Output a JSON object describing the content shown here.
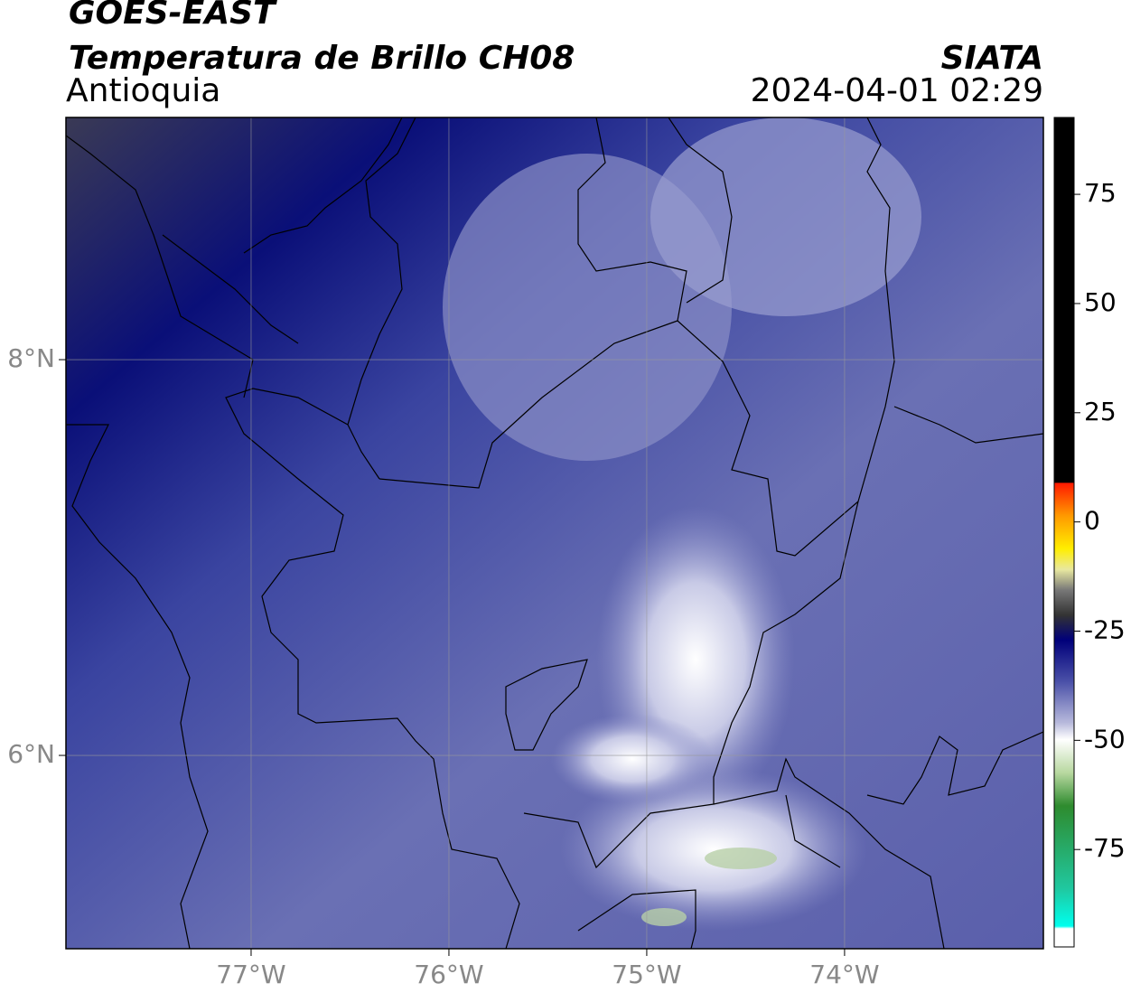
{
  "header": {
    "title": "GOES-EAST",
    "subtitle": "Temperatura de Brillo CH08",
    "source": "SIATA",
    "region": "Antioquia",
    "timestamp": "2024-04-01 02:29"
  },
  "map": {
    "xlim": [
      -77.936,
      -72.995
    ],
    "ylim": [
      5.023,
      9.224
    ],
    "xticks": [
      {
        "value": -77,
        "label": "77°W"
      },
      {
        "value": -76,
        "label": "76°W"
      },
      {
        "value": -75,
        "label": "75°W"
      },
      {
        "value": -74,
        "label": "74°W"
      }
    ],
    "yticks": [
      {
        "value": 8,
        "label": "8°N"
      },
      {
        "value": 6,
        "label": "6°N"
      }
    ],
    "grid": true
  },
  "colorbar": {
    "lim": [
      -97.3,
      92.6
    ],
    "ticks": [
      75,
      50,
      25,
      0,
      -25,
      -50,
      -75
    ]
  }
}
